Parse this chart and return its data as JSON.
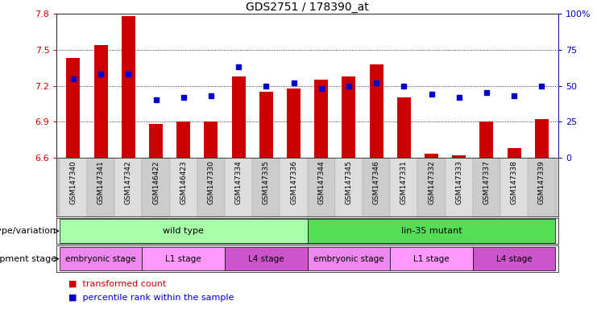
{
  "title": "GDS2751 / 178390_at",
  "samples": [
    "GSM147340",
    "GSM147341",
    "GSM147342",
    "GSM146422",
    "GSM146423",
    "GSM147330",
    "GSM147334",
    "GSM147335",
    "GSM147336",
    "GSM147344",
    "GSM147345",
    "GSM147346",
    "GSM147331",
    "GSM147332",
    "GSM147333",
    "GSM147337",
    "GSM147338",
    "GSM147339"
  ],
  "bar_values": [
    7.43,
    7.54,
    7.78,
    6.88,
    6.9,
    6.9,
    7.28,
    7.15,
    7.18,
    7.25,
    7.28,
    7.38,
    7.1,
    6.63,
    6.62,
    6.9,
    6.68,
    6.92
  ],
  "dot_values": [
    55,
    58,
    58,
    40,
    42,
    43,
    63,
    50,
    52,
    48,
    50,
    52,
    50,
    44,
    42,
    45,
    43,
    50
  ],
  "ymin": 6.6,
  "ymax": 7.8,
  "yticks": [
    6.6,
    6.9,
    7.2,
    7.5,
    7.8
  ],
  "right_yticks": [
    0,
    25,
    50,
    75,
    100
  ],
  "right_yticklabels": [
    "0",
    "25",
    "50",
    "75",
    "100%"
  ],
  "bar_color": "#cc0000",
  "dot_color": "#0000cc",
  "bg_color": "#ffffff",
  "annotation_row1_label": "genotype/variation",
  "annotation_row2_label": "development stage",
  "genotype_regions": [
    {
      "label": "wild type",
      "start": 0,
      "end": 9,
      "color": "#aaffaa"
    },
    {
      "label": "lin-35 mutant",
      "start": 9,
      "end": 18,
      "color": "#55dd55"
    }
  ],
  "stage_regions": [
    {
      "label": "embryonic stage",
      "start": 0,
      "end": 3,
      "color": "#ee88ee"
    },
    {
      "label": "L1 stage",
      "start": 3,
      "end": 6,
      "color": "#ff99ff"
    },
    {
      "label": "L4 stage",
      "start": 6,
      "end": 9,
      "color": "#cc55cc"
    },
    {
      "label": "embryonic stage",
      "start": 9,
      "end": 12,
      "color": "#ee88ee"
    },
    {
      "label": "L1 stage",
      "start": 12,
      "end": 15,
      "color": "#ff99ff"
    },
    {
      "label": "L4 stage",
      "start": 15,
      "end": 18,
      "color": "#cc55cc"
    }
  ],
  "legend_items": [
    {
      "label": "transformed count",
      "color": "#cc0000"
    },
    {
      "label": "percentile rank within the sample",
      "color": "#0000cc"
    }
  ]
}
